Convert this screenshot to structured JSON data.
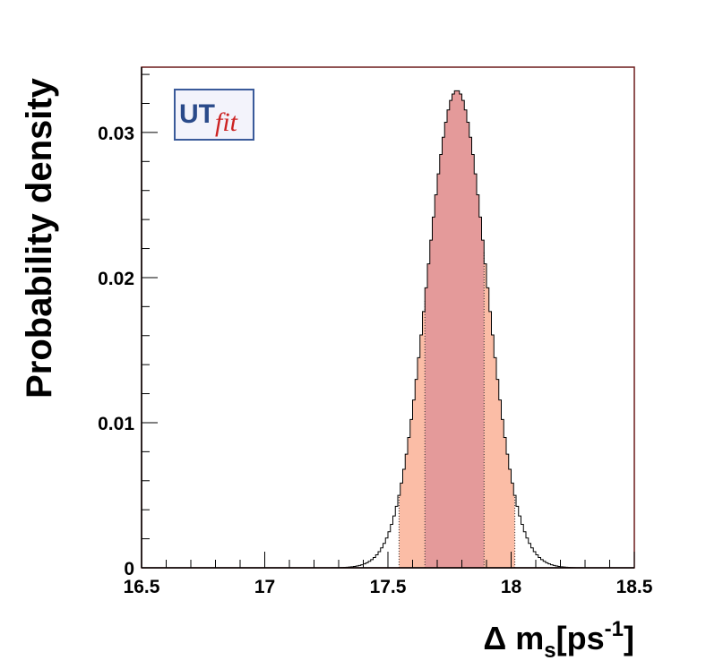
{
  "chart_data": {
    "type": "area",
    "xlabel": {
      "main": "Δ m",
      "sub": "s",
      "after_sub": "[ps",
      "sup": "-1",
      "close": "]"
    },
    "ylabel": "Probability density",
    "xlim": [
      16.5,
      18.5
    ],
    "ylim": [
      0,
      0.0345
    ],
    "x_ticks": [
      16.5,
      17,
      17.5,
      18,
      18.5
    ],
    "x_tick_labels": [
      "16.5",
      "17",
      "17.5",
      "18",
      "18.5"
    ],
    "y_ticks": [
      0,
      0.01,
      0.02,
      0.03
    ],
    "y_tick_labels": [
      "0",
      "0.01",
      "0.02",
      "0.03"
    ],
    "distribution": {
      "mean": 17.78,
      "sigma": 0.121,
      "peak": 0.0329,
      "bin_width": 0.01
    },
    "intervals": {
      "sigma68": [
        17.65,
        17.89
      ],
      "sigma95": [
        17.545,
        18.015
      ]
    },
    "colors": {
      "frame": "#6b1a1a",
      "histogram": "#000000",
      "band68": "#e49a9a",
      "band95": "#fbbda6"
    },
    "logo": {
      "text_main": "UT",
      "text_fit": "fit",
      "main_color": "#2a4a8a",
      "fit_color": "#cc2222"
    }
  }
}
